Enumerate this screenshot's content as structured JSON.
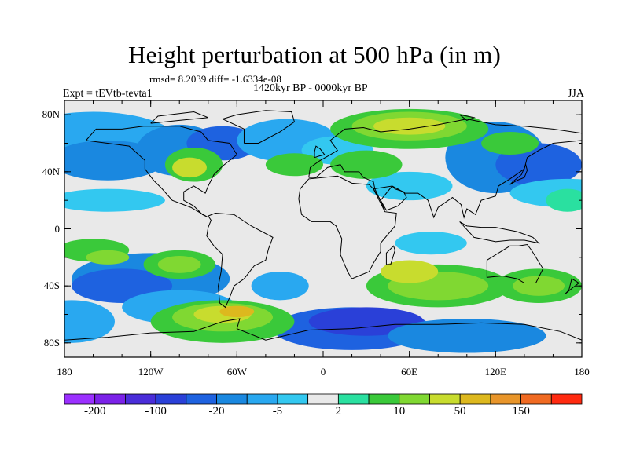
{
  "title": "Height perturbation at 500 hPa (in m)",
  "stats": "rmsd= 8.2039 diff= -1.6334e-08",
  "period": "1420kyr BP - 0000kyr BP",
  "experiment": "Expt = tEVtb-tevta1",
  "season": "JJA",
  "axes": {
    "x_ticks": [
      "180",
      "120W",
      "60W",
      "0",
      "60E",
      "120E",
      "180"
    ],
    "y_ticks": [
      "80N",
      "40N",
      "0",
      "40S",
      "80S"
    ]
  },
  "colorbar": {
    "colors": [
      "#9b30ff",
      "#7b22e8",
      "#4a2dd9",
      "#2a40d8",
      "#1e62e0",
      "#1a88e0",
      "#29a8f0",
      "#33c8f0",
      "#e9e9e9",
      "#2ae0a0",
      "#3ac93a",
      "#80d832",
      "#c8dc2e",
      "#ddb81e",
      "#e8952a",
      "#f06a22",
      "#ff2a10"
    ],
    "labels": [
      "-200",
      "-100",
      "-20",
      "-5",
      "2",
      "10",
      "50",
      "150"
    ]
  },
  "chart_data": {
    "type": "heatmap",
    "title": "Height perturbation at 500 hPa (in m)",
    "subtitle": "1420kyr BP - 0000kyr BP",
    "x_ticks": [
      "180",
      "120W",
      "60W",
      "0",
      "60E",
      "120E",
      "180"
    ],
    "y_ticks": [
      "80N",
      "40N",
      "0",
      "40S",
      "80S"
    ],
    "xlim": [
      -180,
      180
    ],
    "ylim": [
      -90,
      90
    ],
    "levels_shown": [
      -200,
      -100,
      -20,
      -5,
      2,
      10,
      50,
      150
    ]
  }
}
